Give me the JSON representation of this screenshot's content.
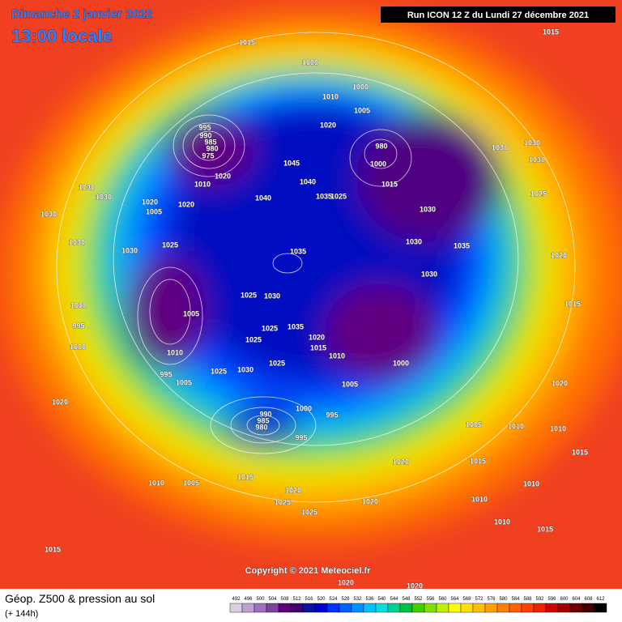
{
  "header": {
    "date": "Dimanche 2 janvier 2022",
    "time": "13:00 locale",
    "run": "Run ICON 12 Z du Lundi 27 décembre 2021"
  },
  "map": {
    "isobar_labels": [
      "1015",
      "1000",
      "1015",
      "1000",
      "1010",
      "1005",
      "1020",
      "995",
      "990",
      "985",
      "980",
      "975",
      "1045",
      "1040",
      "1035",
      "1025",
      "1020",
      "1010",
      "1030",
      "1020",
      "1030",
      "1040",
      "1005",
      "1020",
      "1030",
      "1030",
      "1025",
      "1030",
      "1035",
      "1030",
      "1025",
      "1005",
      "1000",
      "995",
      "1000",
      "1010",
      "1035",
      "1025",
      "1020",
      "1015",
      "1010",
      "1025",
      "1030",
      "1025",
      "1025",
      "1005",
      "995",
      "1005",
      "1000",
      "990",
      "985",
      "980",
      "995",
      "995",
      "980",
      "1000",
      "1015",
      "1030",
      "1030",
      "1035",
      "1030",
      "1000",
      "1030",
      "1030",
      "1030",
      "1025",
      "1020",
      "1015",
      "1020",
      "1010",
      "1015",
      "1010",
      "1010",
      "1015",
      "1020",
      "1010",
      "1005",
      "1015",
      "1020",
      "1025",
      "1025",
      "1020",
      "1015",
      "1010",
      "1020",
      "1015",
      "1020",
      "1020",
      "1005",
      "1010"
    ]
  },
  "footer": {
    "title": "Géop. Z500 & pression au sol",
    "subtitle": "(+ 144h)",
    "copyright": "Copyright © 2021 Meteociel.fr"
  },
  "colorbar": {
    "ticks": [
      492,
      496,
      500,
      504,
      508,
      512,
      516,
      520,
      524,
      528,
      532,
      536,
      540,
      544,
      548,
      552,
      556,
      560,
      564,
      568,
      572,
      576,
      580,
      584,
      588,
      592,
      596,
      600,
      604,
      608,
      612
    ],
    "colors": [
      "#d8d0e0",
      "#c0a0d0",
      "#a070c0",
      "#8040a0",
      "#600080",
      "#400070",
      "#1010a0",
      "#0000d0",
      "#0030ff",
      "#0060ff",
      "#0090ff",
      "#00c0ff",
      "#00e0e0",
      "#00d090",
      "#00c040",
      "#40d000",
      "#80e000",
      "#c0f000",
      "#ffff00",
      "#ffe000",
      "#ffc000",
      "#ffa000",
      "#ff8000",
      "#ff6000",
      "#ff4000",
      "#f02000",
      "#d00000",
      "#a00000",
      "#700000",
      "#400000",
      "#000000"
    ]
  }
}
